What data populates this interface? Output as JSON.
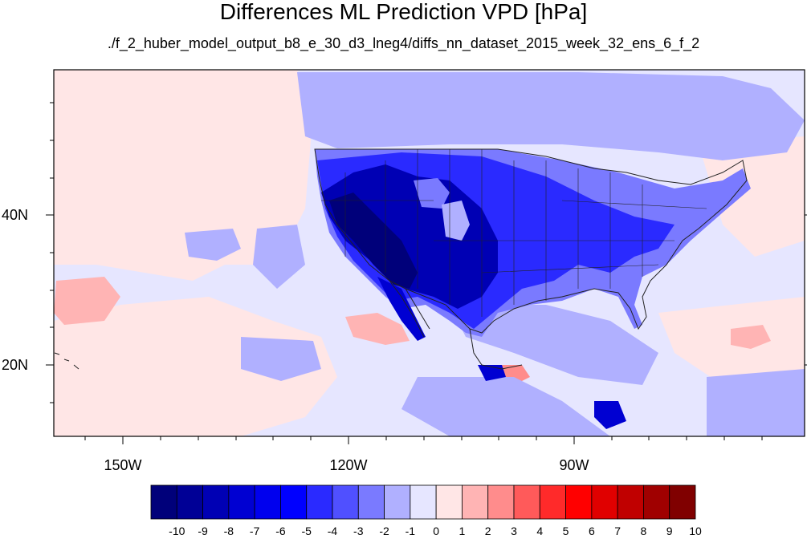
{
  "title": "Differences ML Prediction VPD [hPa]",
  "subtitle": "./f_2_huber_model_output_b8_e_30_d3_lneg4/diffs_nn_dataset_2015_week_32_ens_6_f_2",
  "lat_labels": [
    "40N",
    "20N"
  ],
  "lon_labels": [
    "150W",
    "120W",
    "90W"
  ],
  "colorbar": {
    "labels": [
      "-10",
      "-9",
      "-8",
      "-7",
      "-6",
      "-5",
      "-4",
      "-3",
      "-2",
      "-1",
      "0",
      "1",
      "2",
      "3",
      "4",
      "5",
      "6",
      "7",
      "8",
      "9",
      "10"
    ],
    "colors": [
      "#00007a",
      "#000096",
      "#0000b4",
      "#0000d2",
      "#0000ee",
      "#0000ff",
      "#2a2aff",
      "#5050ff",
      "#7a7aff",
      "#b0b0ff",
      "#e6e6ff",
      "#ffe6e6",
      "#ffb4b4",
      "#ff8c8c",
      "#ff5a5a",
      "#ff2a2a",
      "#ff0000",
      "#e00000",
      "#c00000",
      "#a00000",
      "#800000"
    ]
  },
  "map": {
    "ocean_color": "#e6e6ff",
    "land_outline_color": "#222222"
  }
}
